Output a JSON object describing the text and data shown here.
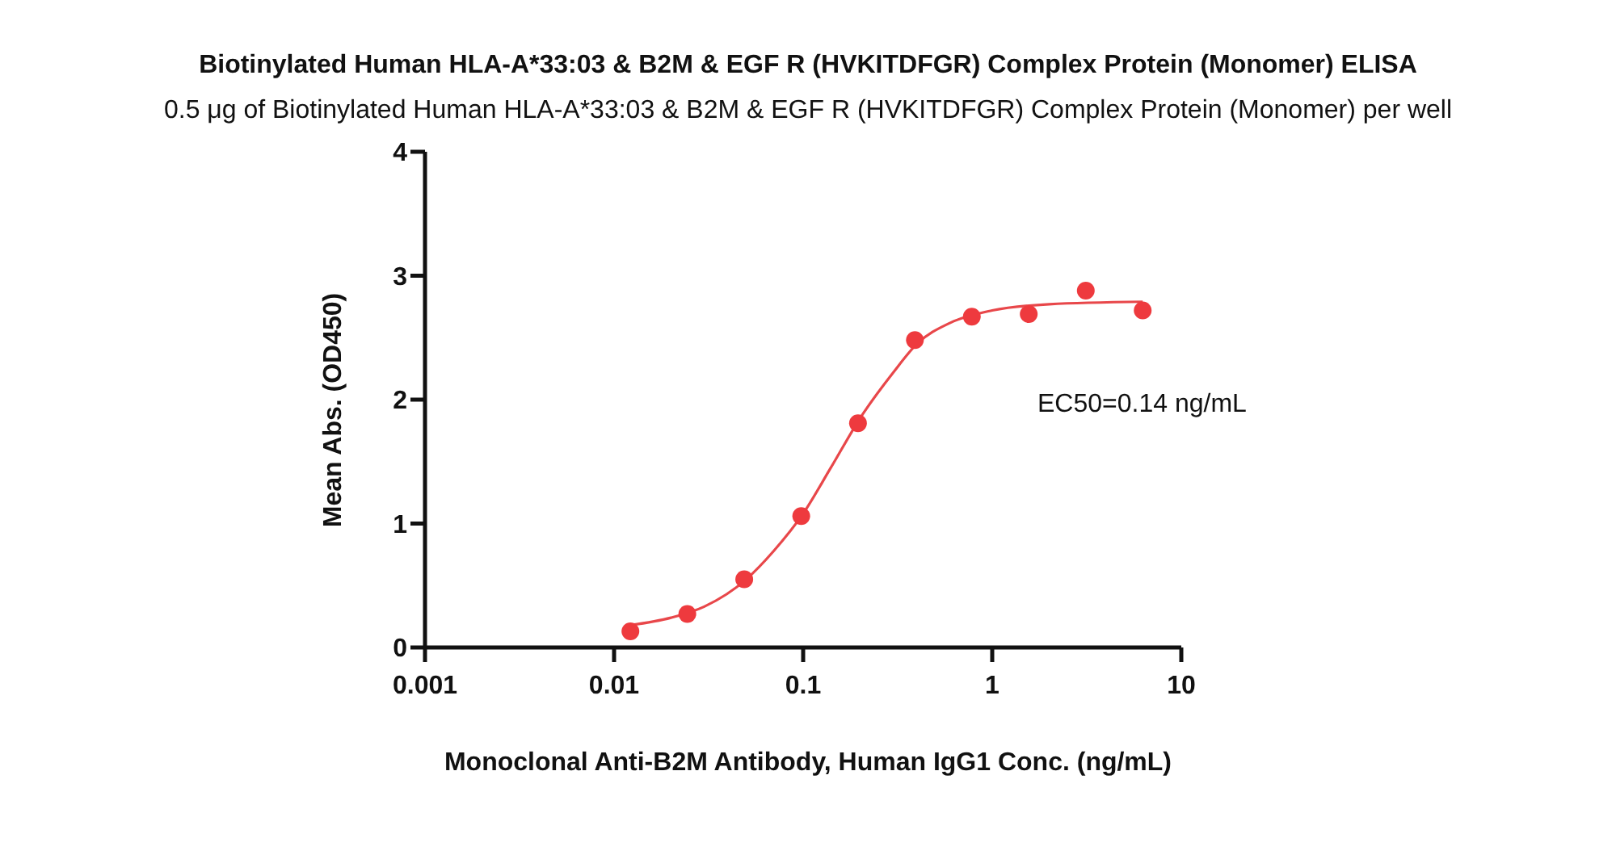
{
  "chart_data": {
    "type": "scatter",
    "title": "Biotinylated Human HLA-A*33:03 & B2M & EGF R (HVKITDFGR) Complex Protein (Monomer) ELISA",
    "subtitle": "0.5 μg of Biotinylated Human HLA-A*33:03 & B2M & EGF R (HVKITDFGR) Complex Protein (Monomer) per well",
    "xlabel": "Monoclonal Anti-B2M Antibody, Human IgG1 Conc. (ng/mL)",
    "ylabel": "Mean Abs. (OD450)",
    "annotations": [
      "EC50=0.14 ng/mL"
    ],
    "log": "x",
    "xlim": [
      0.001,
      10
    ],
    "xticks": [
      0.001,
      0.01,
      0.1,
      1,
      10
    ],
    "ylim": [
      0,
      4
    ],
    "yticks": [
      0,
      1,
      2,
      3,
      4
    ],
    "grid": false,
    "legend": false,
    "series": [
      {
        "color": "#ee3a3e",
        "marker": "circle",
        "x": [
          0.0122,
          0.0244,
          0.0488,
          0.0977,
          0.195,
          0.39,
          0.78,
          1.56,
          3.125,
          6.25
        ],
        "values": [
          0.13,
          0.27,
          0.55,
          1.06,
          1.81,
          2.48,
          2.67,
          2.69,
          2.88,
          2.72
        ]
      },
      {
        "type": "line",
        "color": "#e8474a",
        "marker": "none",
        "line_style": "solid",
        "x": [
          0.0122,
          0.02,
          0.03,
          0.05,
          0.07,
          0.1,
          0.14,
          0.2,
          0.3,
          0.4,
          0.6,
          1,
          2,
          6.25
        ],
        "values": [
          0.18,
          0.24,
          0.33,
          0.55,
          0.78,
          1.08,
          1.45,
          1.85,
          2.22,
          2.45,
          2.62,
          2.72,
          2.77,
          2.79
        ]
      }
    ]
  }
}
